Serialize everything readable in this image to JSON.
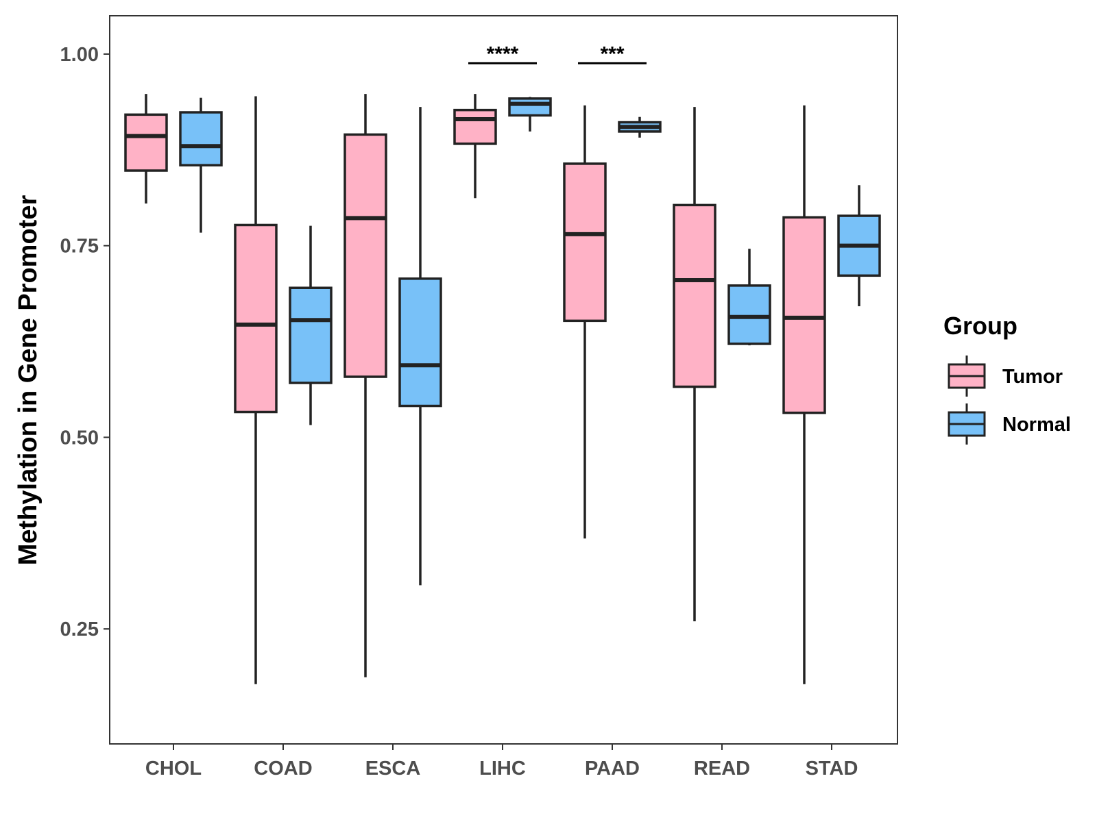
{
  "chart_data": {
    "type": "boxplot",
    "title": "",
    "xlabel": "",
    "ylabel": "Methylation in Gene Promoter",
    "ylim": [
      0.1,
      1.05
    ],
    "yticks": [
      0.25,
      0.5,
      0.75,
      1.0
    ],
    "ytick_labels": [
      "0.25",
      "0.50",
      "0.75",
      "1.00"
    ],
    "grid": false,
    "categories": [
      "CHOL",
      "COAD",
      "ESCA",
      "LIHC",
      "PAAD",
      "READ",
      "STAD"
    ],
    "legend": {
      "title": "Group",
      "placement": "right",
      "entries": [
        {
          "name": "Tumor",
          "color": "#FFB2C6"
        },
        {
          "name": "Normal",
          "color": "#78C1F8"
        }
      ]
    },
    "series": [
      {
        "name": "Tumor",
        "color": "#FFB2C6",
        "boxes": [
          {
            "min": 0.805,
            "q1": 0.848,
            "median": 0.893,
            "q3": 0.921,
            "max": 0.948
          },
          {
            "min": 0.178,
            "q1": 0.533,
            "median": 0.647,
            "q3": 0.777,
            "max": 0.945
          },
          {
            "min": 0.187,
            "q1": 0.579,
            "median": 0.786,
            "q3": 0.895,
            "max": 0.948
          },
          {
            "min": 0.812,
            "q1": 0.883,
            "median": 0.915,
            "q3": 0.927,
            "max": 0.948
          },
          {
            "min": 0.368,
            "q1": 0.652,
            "median": 0.765,
            "q3": 0.857,
            "max": 0.933
          },
          {
            "min": 0.26,
            "q1": 0.566,
            "median": 0.705,
            "q3": 0.803,
            "max": 0.931
          },
          {
            "min": 0.178,
            "q1": 0.532,
            "median": 0.656,
            "q3": 0.787,
            "max": 0.933
          }
        ]
      },
      {
        "name": "Normal",
        "color": "#78C1F8",
        "boxes": [
          {
            "min": 0.767,
            "q1": 0.855,
            "median": 0.88,
            "q3": 0.924,
            "max": 0.943
          },
          {
            "min": 0.516,
            "q1": 0.571,
            "median": 0.653,
            "q3": 0.695,
            "max": 0.776
          },
          {
            "min": 0.307,
            "q1": 0.541,
            "median": 0.594,
            "q3": 0.707,
            "max": 0.931
          },
          {
            "min": 0.899,
            "q1": 0.92,
            "median": 0.935,
            "q3": 0.942,
            "max": 0.944
          },
          {
            "min": 0.891,
            "q1": 0.899,
            "median": 0.905,
            "q3": 0.911,
            "max": 0.918
          },
          {
            "min": 0.62,
            "q1": 0.622,
            "median": 0.657,
            "q3": 0.698,
            "max": 0.746
          },
          {
            "min": 0.671,
            "q1": 0.711,
            "median": 0.75,
            "q3": 0.789,
            "max": 0.829
          }
        ]
      }
    ],
    "annotations": [
      {
        "category": "LIHC",
        "label": "****",
        "y": 0.988
      },
      {
        "category": "PAAD",
        "label": "***",
        "y": 0.988
      }
    ]
  }
}
